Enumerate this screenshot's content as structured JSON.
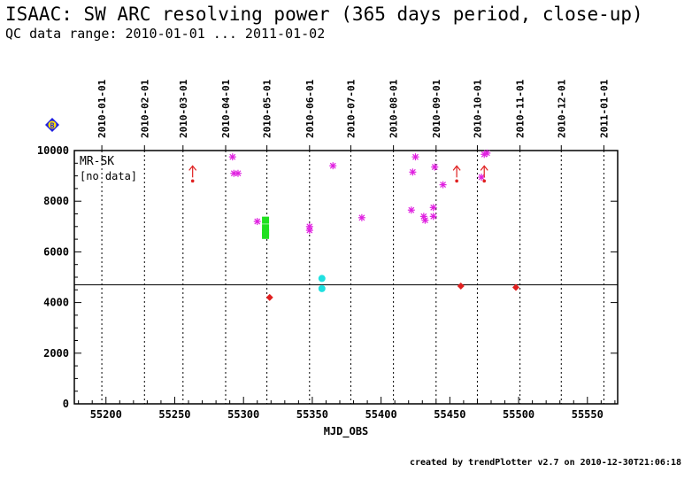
{
  "header": {
    "title": "ISAAC: SW ARC resolving power (365 days period, close-up)",
    "subtitle": "QC data range: 2010-01-01 ... 2011-01-02"
  },
  "footer": {
    "credit": "created by trendPlotter v2.7 on 2010-12-30T21:06:18"
  },
  "badge": {
    "label": "B",
    "color": "#2020e0"
  },
  "chart_data": {
    "type": "scatter",
    "title": "",
    "xlabel": "MJD_OBS",
    "ylabel": "",
    "xlim": [
      55177,
      55572
    ],
    "ylim": [
      0,
      10000
    ],
    "x_ticks": [
      55200,
      55250,
      55300,
      55350,
      55400,
      55450,
      55500,
      55550
    ],
    "y_ticks": [
      0,
      2000,
      4000,
      6000,
      8000,
      10000
    ],
    "top_axis": {
      "labels": [
        "2010-01-01",
        "2010-02-01",
        "2010-03-01",
        "2010-04-01",
        "2010-05-01",
        "2010-06-01",
        "2010-07-01",
        "2010-08-01",
        "2010-09-01",
        "2010-10-01",
        "2010-11-01",
        "2010-12-01",
        "2011-01-01"
      ],
      "mjd": [
        55197,
        55228,
        55256,
        55287,
        55317,
        55348,
        55378,
        55409,
        55440,
        55470,
        55501,
        55531,
        55562
      ]
    },
    "grid": "vertical dotted at month starts",
    "panel_labels": [
      "MR-SK",
      "[no data]"
    ],
    "reference_line": {
      "y": 4700,
      "color": "#000000"
    },
    "series": [
      {
        "marker": "asterisk",
        "color": "#e020e0",
        "points": [
          [
            55292,
            9750
          ],
          [
            55293,
            9100
          ],
          [
            55296,
            9100
          ],
          [
            55310,
            7200
          ],
          [
            55348,
            7000
          ],
          [
            55348,
            6850
          ],
          [
            55365,
            9400
          ],
          [
            55386,
            7350
          ],
          [
            55422,
            7650
          ],
          [
            55423,
            9150
          ],
          [
            55425,
            9750
          ],
          [
            55431,
            7400
          ],
          [
            55432,
            7250
          ],
          [
            55438,
            7750
          ],
          [
            55438,
            7400
          ],
          [
            55439,
            9350
          ],
          [
            55445,
            8650
          ],
          [
            55473,
            8950
          ],
          [
            55475,
            9850
          ],
          [
            55477,
            9900
          ]
        ]
      },
      {
        "marker": "square",
        "color": "#20e020",
        "points": [
          [
            55316,
            7250
          ],
          [
            55316,
            6950
          ],
          [
            55316,
            6750
          ],
          [
            55316,
            6650
          ]
        ]
      },
      {
        "marker": "circle",
        "color": "#20e0e0",
        "points": [
          [
            55357,
            4950
          ],
          [
            55357,
            4550
          ]
        ]
      },
      {
        "marker": "diamond",
        "color": "#e02020",
        "points": [
          [
            55319,
            4200
          ],
          [
            55458,
            4650
          ],
          [
            55498,
            4600
          ]
        ]
      },
      {
        "marker": "up-arrow",
        "color": "#e02020",
        "points": [
          [
            55263,
            8800
          ],
          [
            55455,
            8800
          ],
          [
            55475,
            8800
          ]
        ]
      }
    ]
  }
}
